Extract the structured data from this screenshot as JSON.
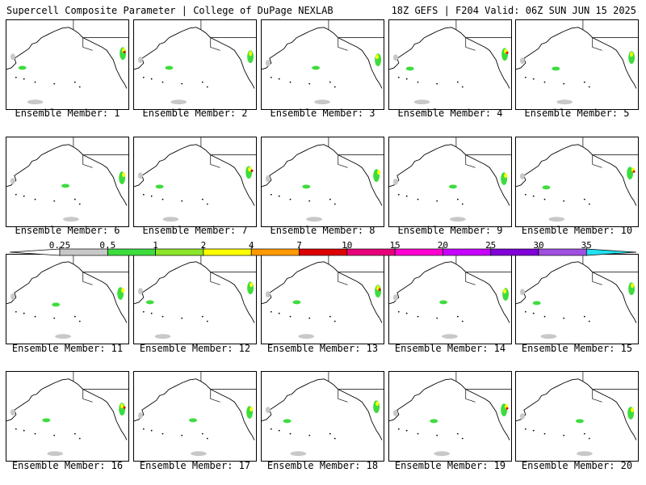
{
  "header": {
    "left": "Supercell Composite Parameter | College of DuPage NEXLAB",
    "right": "18Z GEFS | F204 Valid: 06Z SUN JUN 15 2025"
  },
  "colorbar": {
    "ticks": [
      "0.25",
      "0.5",
      "1",
      "2",
      "4",
      "7",
      "10",
      "15",
      "20",
      "25",
      "30",
      "35"
    ],
    "bins": [
      "#ffffff",
      "#c8c8c8",
      "#3ddc3d",
      "#8ce628",
      "#ffff00",
      "#ff9900",
      "#dd0000",
      "#e8007a",
      "#ff00d2",
      "#c800ff",
      "#7f00d9",
      "#a050e0",
      "#22e0f0"
    ]
  },
  "panels": [
    {
      "label": "Ensemble Member: 1"
    },
    {
      "label": "Ensemble Member: 2"
    },
    {
      "label": "Ensemble Member: 3"
    },
    {
      "label": "Ensemble Member: 4"
    },
    {
      "label": "Ensemble Member: 5"
    },
    {
      "label": "Ensemble Member: 6"
    },
    {
      "label": "Ensemble Member: 7"
    },
    {
      "label": "Ensemble Member: 8"
    },
    {
      "label": "Ensemble Member: 9"
    },
    {
      "label": "Ensemble Member: 10"
    },
    {
      "label": "Ensemble Member: 11"
    },
    {
      "label": "Ensemble Member: 12"
    },
    {
      "label": "Ensemble Member: 13"
    },
    {
      "label": "Ensemble Member: 14"
    },
    {
      "label": "Ensemble Member: 15"
    },
    {
      "label": "Ensemble Member: 16"
    },
    {
      "label": "Ensemble Member: 17"
    },
    {
      "label": "Ensemble Member: 18"
    },
    {
      "label": "Ensemble Member: 19"
    },
    {
      "label": "Ensemble Member: 20"
    }
  ]
}
